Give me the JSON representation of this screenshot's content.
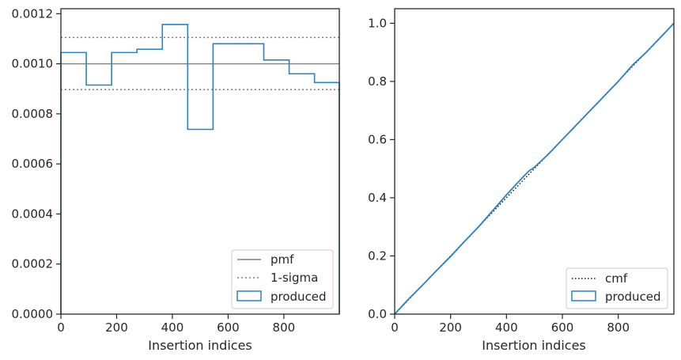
{
  "colors": {
    "produced": "#2b83ba",
    "pmf": "#7f7f7f",
    "sigma": "#7f7f7f",
    "cmf": "#0d1b2a",
    "axes": "#262626"
  },
  "chart_data": [
    {
      "type": "line",
      "title": "",
      "xlabel": "Insertion indices",
      "ylabel": "",
      "xlim": [
        0,
        999
      ],
      "ylim": [
        0,
        0.00122
      ],
      "xticks": [
        0,
        200,
        400,
        600,
        800
      ],
      "xtick_labels": [
        "0",
        "200",
        "400",
        "600",
        "800"
      ],
      "yticks": [
        0,
        0.0002,
        0.0004,
        0.0006,
        0.0008,
        0.001,
        0.0012
      ],
      "ytick_labels": [
        "0.0000",
        "0.0002",
        "0.0004",
        "0.0006",
        "0.0008",
        "0.0010",
        "0.0012"
      ],
      "legend_position": "lower right",
      "legend": [
        "pmf",
        "1-sigma",
        "produced"
      ],
      "pmf": 0.001,
      "sigma_band": [
        0.000897,
        0.001105
      ],
      "series": [
        {
          "name": "produced",
          "style": "step-histogram",
          "bin_edges": [
            0,
            91,
            182,
            273,
            364,
            455,
            546,
            637,
            728,
            819,
            910,
            999
          ],
          "values": [
            0.001045,
            0.000915,
            0.001045,
            0.001058,
            0.001157,
            0.000738,
            0.00108,
            0.00108,
            0.001015,
            0.00096,
            0.000925
          ]
        }
      ]
    },
    {
      "type": "line",
      "title": "",
      "xlabel": "Insertion indices",
      "ylabel": "",
      "xlim": [
        0,
        999
      ],
      "ylim": [
        0,
        1.05
      ],
      "xticks": [
        0,
        200,
        400,
        600,
        800
      ],
      "xtick_labels": [
        "0",
        "200",
        "400",
        "600",
        "800"
      ],
      "yticks": [
        0,
        0.2,
        0.4,
        0.6,
        0.8,
        1.0
      ],
      "ytick_labels": [
        "0.0",
        "0.2",
        "0.4",
        "0.6",
        "0.8",
        "1.0"
      ],
      "legend_position": "lower right",
      "legend": [
        "cmf",
        "produced"
      ],
      "series": [
        {
          "name": "cmf",
          "style": "dotted",
          "x": [
            0,
            999
          ],
          "y": [
            0,
            1.0
          ]
        },
        {
          "name": "produced",
          "style": "solid",
          "x": [
            0,
            50,
            100,
            150,
            200,
            250,
            300,
            350,
            400,
            450,
            480,
            500,
            550,
            600,
            650,
            700,
            750,
            800,
            850,
            900,
            950,
            999
          ],
          "y": [
            0,
            0.052,
            0.1,
            0.15,
            0.198,
            0.25,
            0.3,
            0.355,
            0.41,
            0.462,
            0.492,
            0.505,
            0.55,
            0.6,
            0.65,
            0.7,
            0.75,
            0.8,
            0.855,
            0.9,
            0.95,
            1.0
          ]
        }
      ]
    }
  ]
}
